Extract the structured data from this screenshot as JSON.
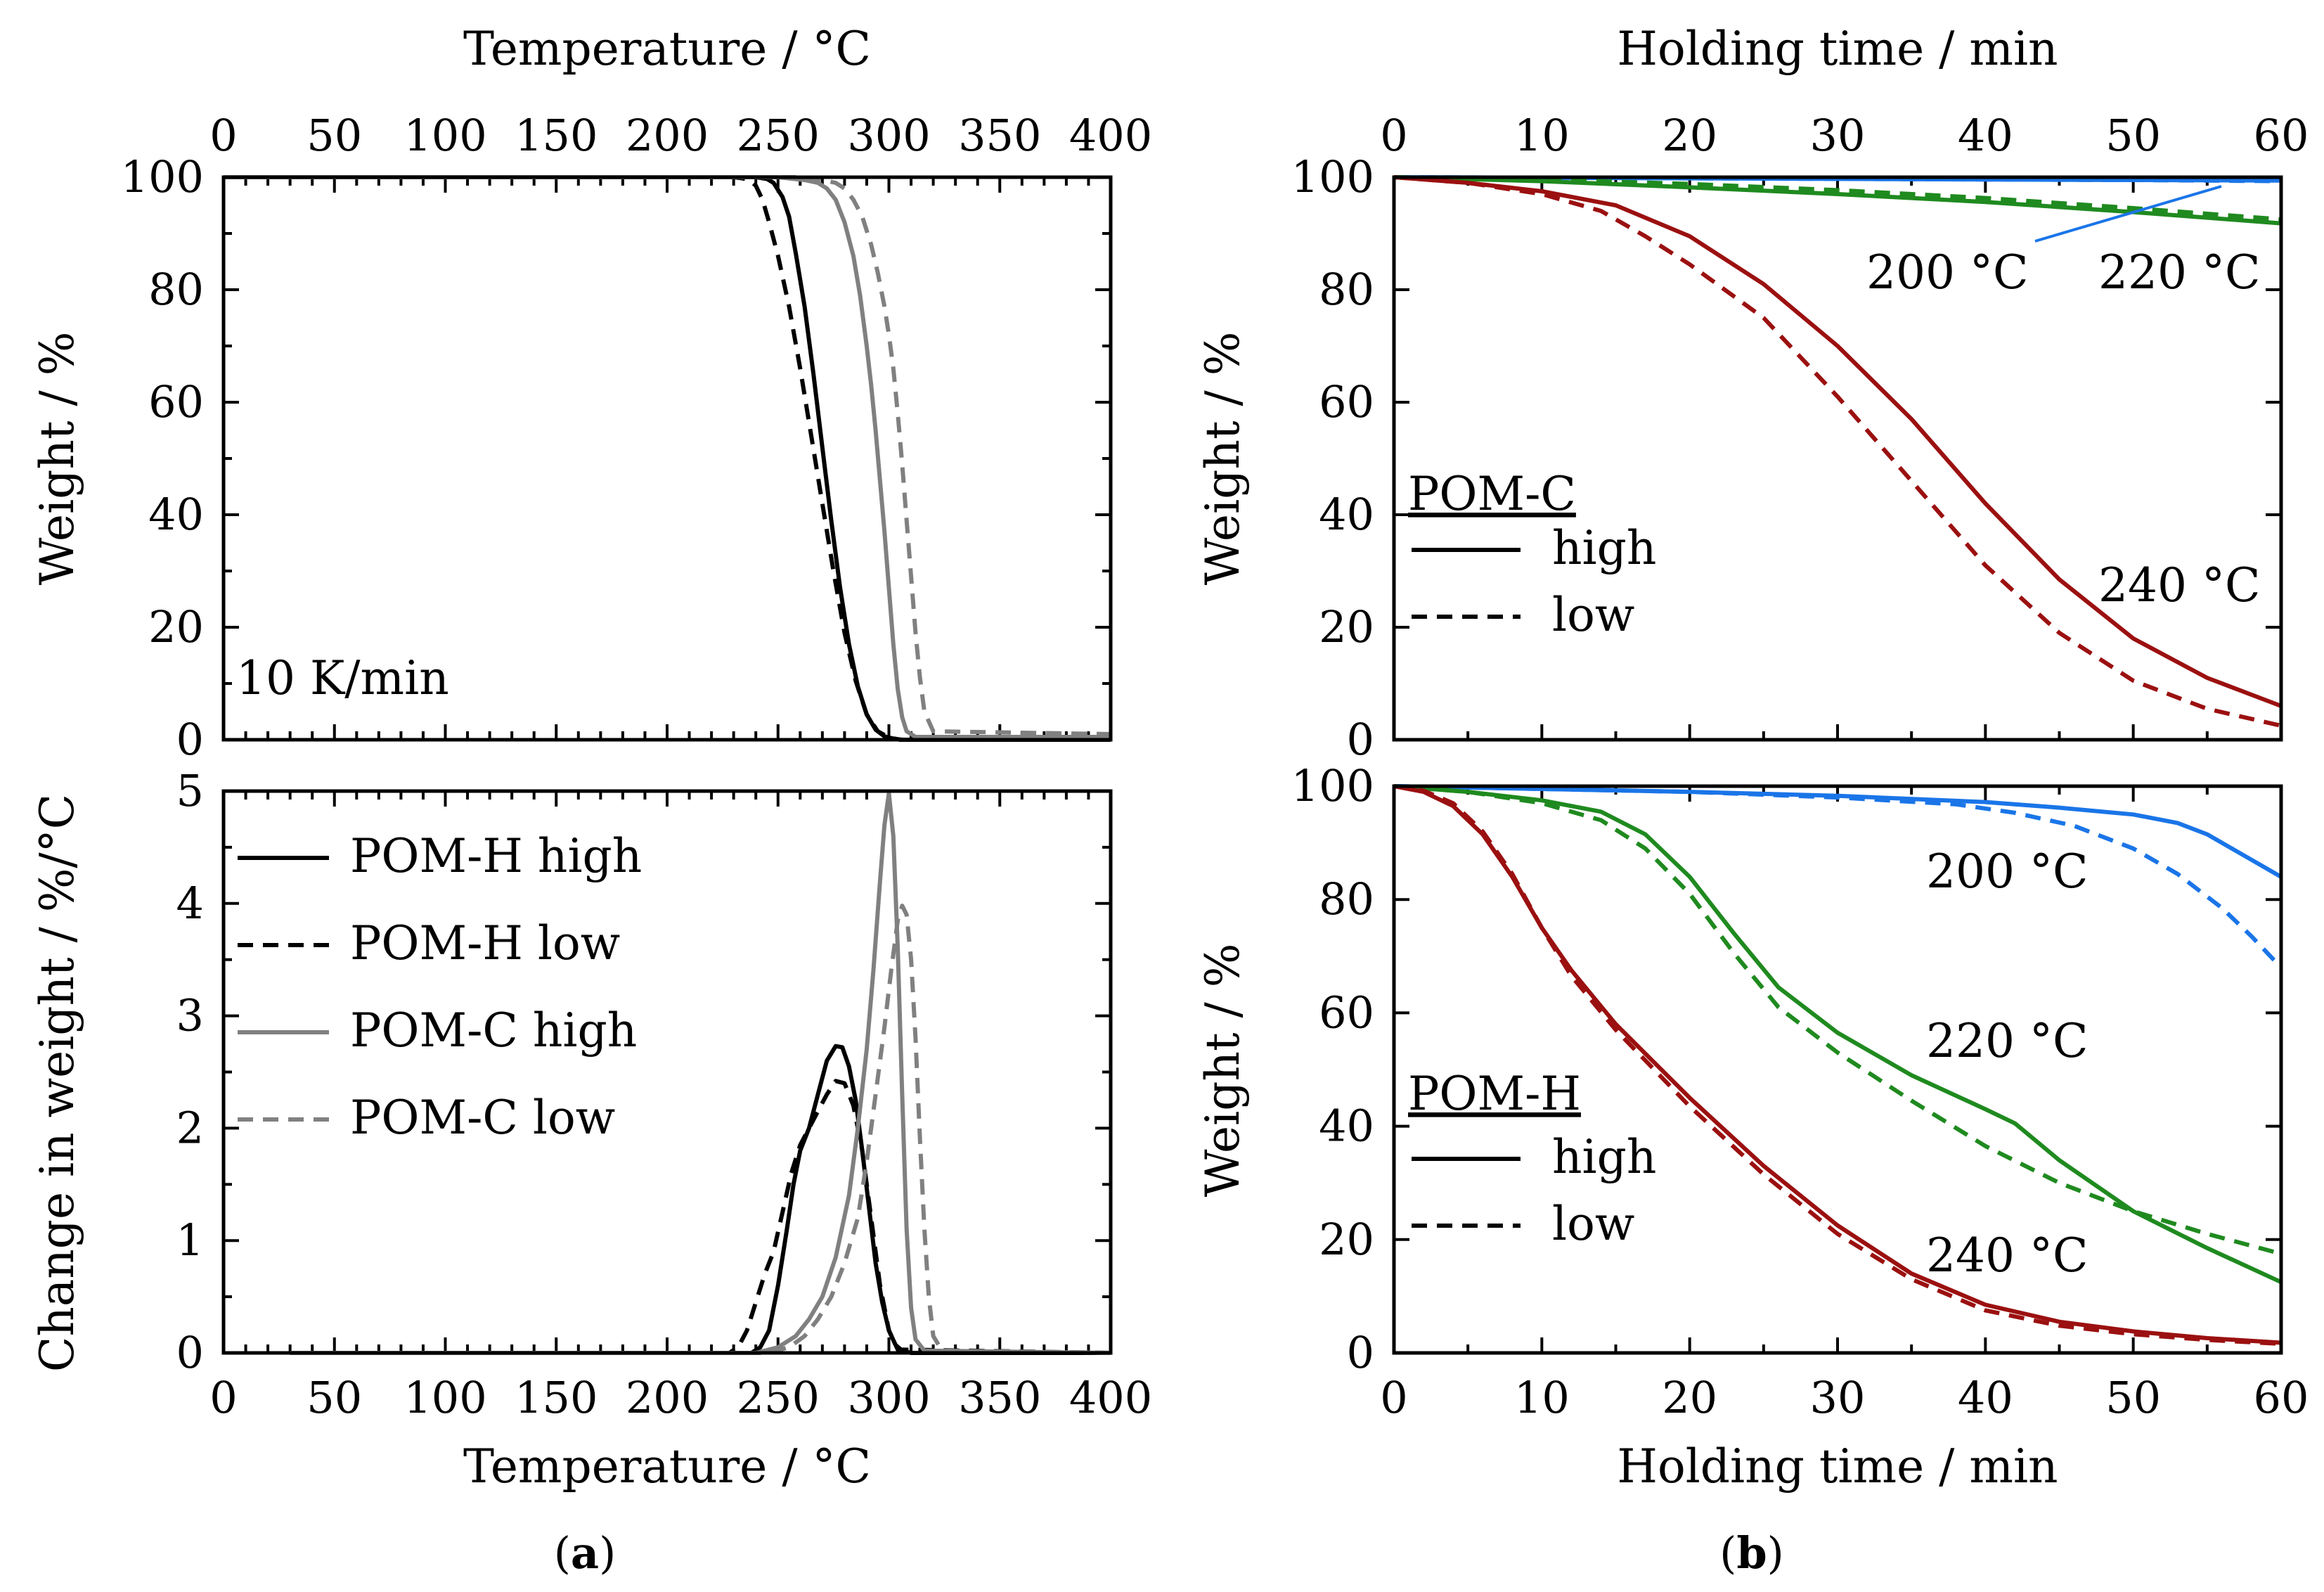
{
  "chart_data": [
    {
      "id": "a_top",
      "type": "line",
      "xlabel": "Temperature / °C",
      "ylabel": "Weight / %",
      "xlim": [
        0,
        400
      ],
      "ylim": [
        0,
        100
      ],
      "xticks": [
        0,
        50,
        100,
        150,
        200,
        250,
        300,
        350,
        400
      ],
      "yticks": [
        0,
        20,
        40,
        60,
        80,
        100
      ],
      "annotation": "10 K/min",
      "series": [
        {
          "key": "POM-H high",
          "color": "#000000",
          "dash": false,
          "x": [
            0,
            240,
            245,
            248,
            252,
            255,
            258,
            262,
            266,
            270,
            274,
            278,
            282,
            286,
            290,
            294,
            298,
            302,
            306,
            310,
            400
          ],
          "y": [
            100,
            100,
            99.7,
            99,
            96.5,
            93,
            86.5,
            77,
            65,
            52,
            39,
            27,
            17,
            9.5,
            4.5,
            1.8,
            0.6,
            0.2,
            0,
            0,
            0
          ]
        },
        {
          "key": "POM-H low",
          "color": "#000000",
          "dash": true,
          "x": [
            0,
            230,
            234,
            237,
            240,
            243,
            246,
            250,
            255,
            260,
            265,
            270,
            275,
            280,
            285,
            290,
            295,
            300,
            305,
            400
          ],
          "y": [
            100,
            100,
            99.8,
            99.5,
            98.5,
            96,
            92,
            86,
            77,
            66,
            54,
            42,
            30,
            19,
            10.5,
            4.5,
            1.5,
            0.4,
            0,
            0
          ]
        },
        {
          "key": "POM-C high",
          "color": "#808080",
          "dash": false,
          "x": [
            0,
            250,
            262,
            268,
            272,
            276,
            280,
            284,
            287,
            290,
            292,
            294,
            296,
            298,
            300,
            302,
            304,
            306,
            308,
            312,
            400
          ],
          "y": [
            100,
            100,
            99.5,
            99,
            98,
            96,
            92,
            86,
            79,
            70,
            63,
            55,
            46,
            37,
            27,
            17,
            9,
            4,
            1.5,
            0.5,
            0.5
          ]
        },
        {
          "key": "POM-C low",
          "color": "#808080",
          "dash": true,
          "x": [
            0,
            260,
            270,
            276,
            280,
            284,
            288,
            292,
            295,
            298,
            300,
            302,
            304,
            306,
            308,
            310,
            312,
            314,
            316,
            320,
            400
          ],
          "y": [
            100,
            100,
            99.5,
            99,
            98,
            96,
            93,
            88,
            83,
            77,
            72,
            66,
            58,
            49,
            39,
            29,
            19,
            11,
            5,
            1.5,
            1
          ]
        }
      ]
    },
    {
      "id": "a_bottom",
      "type": "line",
      "xlabel": "Temperature / °C",
      "ylabel": "Change in weight / %/°C",
      "xlim": [
        0,
        400
      ],
      "ylim": [
        0,
        5
      ],
      "xticks": [
        0,
        50,
        100,
        150,
        200,
        250,
        300,
        350,
        400
      ],
      "yticks": [
        0,
        1,
        2,
        3,
        4,
        5
      ],
      "legend": [
        {
          "label": "POM-H high",
          "color": "#000000",
          "dash": false
        },
        {
          "label": "POM-H low",
          "color": "#000000",
          "dash": true
        },
        {
          "label": "POM-C high",
          "color": "#808080",
          "dash": false
        },
        {
          "label": "POM-C low",
          "color": "#808080",
          "dash": true
        }
      ],
      "series": [
        {
          "key": "POM-H high",
          "color": "#000000",
          "dash": false,
          "x": [
            30,
            238,
            242,
            246,
            250,
            254,
            257,
            260,
            264,
            268,
            272,
            276,
            279,
            282,
            285,
            288,
            291,
            294,
            297,
            300,
            303,
            306,
            310,
            400
          ],
          "y": [
            0,
            0,
            0.05,
            0.2,
            0.6,
            1.1,
            1.5,
            1.8,
            2.0,
            2.3,
            2.6,
            2.73,
            2.72,
            2.55,
            2.25,
            1.8,
            1.3,
            0.8,
            0.45,
            0.2,
            0.07,
            0.02,
            0,
            0
          ]
        },
        {
          "key": "POM-H low",
          "color": "#000000",
          "dash": true,
          "x": [
            30,
            228,
            232,
            236,
            240,
            244,
            248,
            252,
            256,
            260,
            264,
            268,
            272,
            276,
            280,
            284,
            288,
            292,
            296,
            300,
            304,
            400
          ],
          "y": [
            0,
            0,
            0.05,
            0.2,
            0.45,
            0.7,
            0.9,
            1.25,
            1.6,
            1.85,
            2.0,
            2.15,
            2.3,
            2.42,
            2.4,
            2.2,
            1.8,
            1.2,
            0.6,
            0.2,
            0.03,
            0
          ]
        },
        {
          "key": "POM-C high",
          "color": "#808080",
          "dash": false,
          "x": [
            30,
            240,
            250,
            258,
            264,
            270,
            276,
            282,
            286,
            290,
            293,
            296,
            298,
            300,
            302,
            304,
            306,
            308,
            310,
            312,
            316,
            400
          ],
          "y": [
            0,
            0,
            0.05,
            0.15,
            0.3,
            0.5,
            0.85,
            1.4,
            2.0,
            2.7,
            3.4,
            4.2,
            4.7,
            4.98,
            4.6,
            3.6,
            2.3,
            1.1,
            0.4,
            0.12,
            0.02,
            0
          ]
        },
        {
          "key": "POM-C low",
          "color": "#808080",
          "dash": true,
          "x": [
            30,
            245,
            255,
            262,
            268,
            274,
            280,
            286,
            290,
            294,
            298,
            301,
            304,
            306,
            308,
            310,
            312,
            314,
            316,
            318,
            320,
            324,
            400
          ],
          "y": [
            0,
            0,
            0.05,
            0.15,
            0.3,
            0.5,
            0.8,
            1.2,
            1.7,
            2.3,
            2.9,
            3.4,
            3.85,
            3.98,
            3.9,
            3.5,
            2.8,
            1.9,
            1.1,
            0.5,
            0.15,
            0.02,
            0
          ]
        }
      ]
    },
    {
      "id": "b_top",
      "type": "line",
      "xlabel": "Holding time / min",
      "ylabel": "Weight / %",
      "xlim": [
        0,
        60
      ],
      "ylim": [
        0,
        100
      ],
      "xticks": [
        0,
        10,
        20,
        30,
        40,
        50,
        60
      ],
      "yticks": [
        0,
        20,
        40,
        60,
        80,
        100
      ],
      "legend_title": "POM-C",
      "legend": [
        {
          "label": "high",
          "color": "#000000",
          "dash": false
        },
        {
          "label": "low",
          "color": "#000000",
          "dash": true
        }
      ],
      "labels": {
        "t200": "200 °C",
        "t220": "220 °C",
        "t240": "240 °C"
      },
      "series": [
        {
          "key": "200 °C high",
          "color": "#1a75e8",
          "dash": false,
          "x": [
            0,
            10,
            20,
            30,
            40,
            50,
            60
          ],
          "y": [
            100,
            99.9,
            99.8,
            99.7,
            99.6,
            99.5,
            99.4
          ]
        },
        {
          "key": "200 °C low",
          "color": "#1a75e8",
          "dash": true,
          "x": [
            0,
            10,
            20,
            30,
            40,
            50,
            60
          ],
          "y": [
            100,
            99.9,
            99.8,
            99.7,
            99.6,
            99.5,
            99.3
          ]
        },
        {
          "key": "220 °C high",
          "color": "#1f8a1f",
          "dash": false,
          "x": [
            0,
            10,
            20,
            30,
            40,
            50,
            60
          ],
          "y": [
            100,
            99.3,
            98.2,
            97,
            95.6,
            93.8,
            91.8
          ]
        },
        {
          "key": "220 °C low",
          "color": "#1f8a1f",
          "dash": true,
          "x": [
            0,
            10,
            20,
            30,
            40,
            50,
            60
          ],
          "y": [
            100,
            99.6,
            98.8,
            97.7,
            96.3,
            94.5,
            92.5
          ]
        },
        {
          "key": "240 °C high",
          "color": "#9b1010",
          "dash": false,
          "x": [
            0,
            5,
            10,
            15,
            20,
            25,
            30,
            35,
            40,
            45,
            50,
            55,
            60
          ],
          "y": [
            100,
            99,
            97.5,
            95,
            89.5,
            81,
            70,
            57,
            42,
            28.5,
            18,
            11,
            6
          ]
        },
        {
          "key": "240 °C low",
          "color": "#9b1010",
          "dash": true,
          "x": [
            0,
            5,
            10,
            14,
            17,
            20,
            25,
            30,
            35,
            40,
            45,
            50,
            55,
            60
          ],
          "y": [
            100,
            99,
            97,
            94,
            89.5,
            84.5,
            75,
            61,
            46,
            31,
            19,
            10.5,
            5.5,
            2.5
          ]
        }
      ]
    },
    {
      "id": "b_bottom",
      "type": "line",
      "xlabel": "Holding time / min",
      "ylabel": "Weight / %",
      "xlim": [
        0,
        60
      ],
      "ylim": [
        0,
        100
      ],
      "xticks": [
        0,
        10,
        20,
        30,
        40,
        50,
        60
      ],
      "yticks": [
        0,
        20,
        40,
        60,
        80,
        100
      ],
      "legend_title": "POM-H",
      "legend": [
        {
          "label": "high",
          "color": "#000000",
          "dash": false
        },
        {
          "label": "low",
          "color": "#000000",
          "dash": true
        }
      ],
      "labels": {
        "t200": "200 °C",
        "t220": "220 °C",
        "t240": "240 °C"
      },
      "series": [
        {
          "key": "200 °C high",
          "color": "#1a75e8",
          "dash": false,
          "x": [
            0,
            10,
            20,
            30,
            40,
            45,
            50,
            53,
            55,
            57,
            60
          ],
          "y": [
            100,
            99.5,
            99,
            98.3,
            97.2,
            96.2,
            95,
            93.5,
            91.5,
            88.5,
            84
          ]
        },
        {
          "key": "200 °C low",
          "color": "#1a75e8",
          "dash": true,
          "x": [
            0,
            10,
            20,
            30,
            38,
            42,
            46,
            50,
            53,
            56,
            58,
            60
          ],
          "y": [
            100,
            99.5,
            99,
            98,
            96.8,
            95.3,
            93,
            89,
            84.5,
            78.5,
            73.5,
            68
          ]
        },
        {
          "key": "220 °C high",
          "color": "#1f8a1f",
          "dash": false,
          "x": [
            0,
            5,
            10,
            14,
            17,
            20,
            23,
            26,
            30,
            35,
            40,
            42,
            45,
            50,
            55,
            60
          ],
          "y": [
            100,
            99,
            97.5,
            95.5,
            91.5,
            84,
            74,
            64.5,
            56.5,
            49,
            43,
            40.5,
            34,
            25,
            18.5,
            12.5
          ]
        },
        {
          "key": "220 °C low",
          "color": "#1f8a1f",
          "dash": true,
          "x": [
            0,
            5,
            10,
            14,
            17,
            20,
            23,
            26,
            30,
            35,
            40,
            45,
            50,
            55,
            60
          ],
          "y": [
            100,
            99,
            97,
            94,
            89,
            81,
            70.5,
            61,
            53,
            44.5,
            36.5,
            30,
            25,
            21,
            17.5
          ]
        },
        {
          "key": "240 °C high",
          "color": "#9b1010",
          "dash": false,
          "x": [
            0,
            2,
            4,
            6,
            8,
            10,
            12,
            15,
            20,
            25,
            30,
            35,
            40,
            45,
            50,
            55,
            60
          ],
          "y": [
            100,
            99,
            96.5,
            91.5,
            84,
            75,
            67.5,
            58,
            45,
            33,
            22.5,
            14,
            8.5,
            5.5,
            3.8,
            2.6,
            1.8
          ]
        },
        {
          "key": "240 °C low",
          "color": "#9b1010",
          "dash": true,
          "x": [
            0,
            2,
            4,
            6,
            8,
            10,
            12,
            15,
            20,
            25,
            30,
            35,
            40,
            45,
            50,
            55,
            60
          ],
          "y": [
            100,
            99.2,
            97,
            92,
            84.5,
            75,
            66.5,
            57,
            43.5,
            31.5,
            21,
            13,
            7.5,
            4.8,
            3.3,
            2.3,
            1.6
          ]
        }
      ]
    }
  ],
  "figure": {
    "panel_a_label": "(a)",
    "panel_b_label": "(b)",
    "colors": {
      "black": "#000000",
      "gray": "#808080",
      "blue": "#1a75e8",
      "green": "#1f8a1f",
      "red": "#9b1010"
    }
  }
}
